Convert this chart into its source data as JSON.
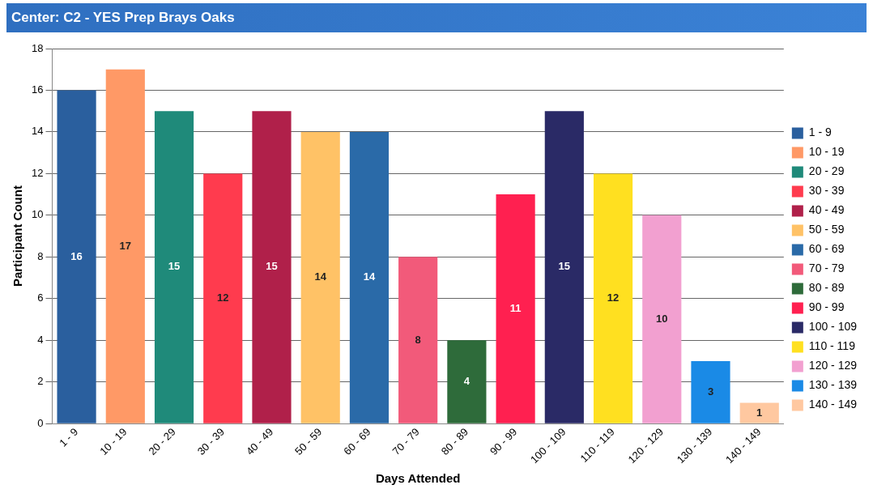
{
  "chart_data": {
    "type": "bar",
    "title": "Center: C2 - YES Prep Brays Oaks",
    "xlabel": "Days Attended",
    "ylabel": "Participant Count",
    "categories": [
      "1 - 9",
      "10 - 19",
      "20 - 29",
      "30 - 39",
      "40 - 49",
      "50 - 59",
      "60 - 69",
      "70 - 79",
      "80 - 89",
      "90 - 99",
      "100 - 109",
      "110 - 119",
      "120 - 129",
      "130 - 139",
      "140 - 149"
    ],
    "series": [
      {
        "name": "1 - 9",
        "color": "#2a5f9e",
        "values": [
          16,
          null,
          null,
          null,
          null,
          null,
          null,
          null,
          null,
          null,
          null,
          null,
          null,
          null,
          null
        ]
      },
      {
        "name": "10 - 19",
        "color": "#ff9966",
        "values": [
          null,
          17,
          null,
          null,
          null,
          null,
          null,
          null,
          null,
          null,
          null,
          null,
          null,
          null,
          null
        ]
      },
      {
        "name": "20 - 29",
        "color": "#1f8a7a",
        "values": [
          null,
          null,
          15,
          null,
          null,
          null,
          null,
          null,
          null,
          null,
          null,
          null,
          null,
          null,
          null
        ]
      },
      {
        "name": "30 - 39",
        "color": "#ff3b4e",
        "values": [
          null,
          null,
          null,
          12,
          null,
          null,
          null,
          null,
          null,
          null,
          null,
          null,
          null,
          null,
          null
        ]
      },
      {
        "name": "40 - 49",
        "color": "#b0204a",
        "values": [
          null,
          null,
          null,
          null,
          15,
          null,
          null,
          null,
          null,
          null,
          null,
          null,
          null,
          null,
          null
        ]
      },
      {
        "name": "50 - 59",
        "color": "#ffc266",
        "values": [
          null,
          null,
          null,
          null,
          null,
          14,
          null,
          null,
          null,
          null,
          null,
          null,
          null,
          null,
          null
        ]
      },
      {
        "name": "60 - 69",
        "color": "#2a6aa8",
        "values": [
          null,
          null,
          null,
          null,
          null,
          null,
          14,
          null,
          null,
          null,
          null,
          null,
          null,
          null,
          null
        ]
      },
      {
        "name": "70 - 79",
        "color": "#f25a7a",
        "values": [
          null,
          null,
          null,
          null,
          null,
          null,
          null,
          8,
          null,
          null,
          null,
          null,
          null,
          null,
          null
        ]
      },
      {
        "name": "80 - 89",
        "color": "#2e6b3a",
        "values": [
          null,
          null,
          null,
          null,
          null,
          null,
          null,
          null,
          4,
          null,
          null,
          null,
          null,
          null,
          null
        ]
      },
      {
        "name": "90 - 99",
        "color": "#ff2050",
        "values": [
          null,
          null,
          null,
          null,
          null,
          null,
          null,
          null,
          null,
          11,
          null,
          null,
          null,
          null,
          null
        ]
      },
      {
        "name": "100 - 109",
        "color": "#2a2a66",
        "values": [
          null,
          null,
          null,
          null,
          null,
          null,
          null,
          null,
          null,
          null,
          15,
          null,
          null,
          null,
          null
        ]
      },
      {
        "name": "110 - 119",
        "color": "#ffe020",
        "values": [
          null,
          null,
          null,
          null,
          null,
          null,
          null,
          null,
          null,
          null,
          null,
          12,
          null,
          null,
          null
        ]
      },
      {
        "name": "120 - 129",
        "color": "#f2a0d0",
        "values": [
          null,
          null,
          null,
          null,
          null,
          null,
          null,
          null,
          null,
          null,
          null,
          null,
          10,
          null,
          null
        ]
      },
      {
        "name": "130 - 139",
        "color": "#1a8ae6",
        "values": [
          null,
          null,
          null,
          null,
          null,
          null,
          null,
          null,
          null,
          null,
          null,
          null,
          null,
          3,
          null
        ]
      },
      {
        "name": "140 - 149",
        "color": "#ffc8a0",
        "values": [
          null,
          null,
          null,
          null,
          null,
          null,
          null,
          null,
          null,
          null,
          null,
          null,
          null,
          null,
          1
        ]
      }
    ],
    "ylim": [
      0,
      18
    ],
    "yticks": [
      0,
      2,
      4,
      6,
      8,
      10,
      12,
      14,
      16,
      18
    ],
    "grid": "y",
    "legend": "right",
    "data_labels": true
  }
}
